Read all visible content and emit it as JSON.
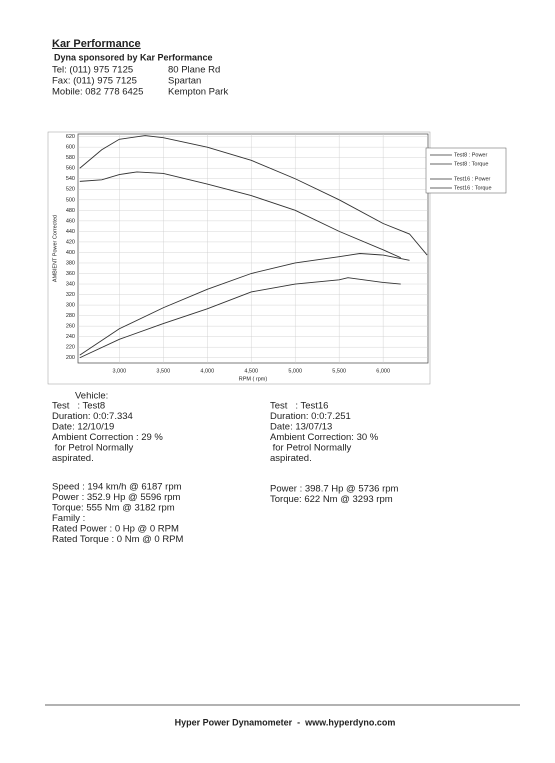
{
  "header": {
    "title": "Kar Performance",
    "subtitle": "Dyna sponsored by Kar Performance",
    "contact": [
      "Tel: (011) 975 7125",
      "Fax: (011) 975 7125",
      "Mobile: 082 778 6425"
    ],
    "address": [
      "80 Plane Rd",
      "Spartan",
      "Kempton Park"
    ]
  },
  "chart_data": {
    "type": "line",
    "xlabel": "RPM ( rpm)",
    "ylabel": "AMBIENT Power Corrected",
    "xlim": [
      2530,
      6510
    ],
    "ylim": [
      190,
      625
    ],
    "xticks": [
      {
        "value": 3000,
        "label": "3,000"
      },
      {
        "value": 3500,
        "label": "3,500"
      },
      {
        "value": 4000,
        "label": "4,000"
      },
      {
        "value": 4500,
        "label": "4,500"
      },
      {
        "value": 5000,
        "label": "5,000"
      },
      {
        "value": 5500,
        "label": "5,500"
      },
      {
        "value": 6000,
        "label": "6,000"
      }
    ],
    "yticks": [
      200,
      220,
      240,
      260,
      280,
      300,
      320,
      340,
      360,
      380,
      400,
      420,
      440,
      460,
      480,
      500,
      520,
      540,
      560,
      580,
      600,
      620
    ],
    "grid": true,
    "series": [
      {
        "name": "Test8 : Power",
        "color": "#333333",
        "x": [
          2550,
          3000,
          3500,
          4000,
          4500,
          5000,
          5500,
          5600,
          6000,
          6200
        ],
        "values": [
          200,
          235,
          265,
          293,
          325,
          340,
          348,
          352,
          343,
          340
        ]
      },
      {
        "name": "Test8 : Torque",
        "color": "#333333",
        "x": [
          2550,
          2800,
          3000,
          3200,
          3500,
          4000,
          4500,
          5000,
          5500,
          6000,
          6200
        ],
        "values": [
          535,
          538,
          548,
          553,
          550,
          530,
          508,
          480,
          440,
          405,
          390
        ]
      },
      {
        "name": "Test16 : Power",
        "color": "#333333",
        "x": [
          2550,
          3000,
          3500,
          4000,
          4500,
          5000,
          5500,
          5736,
          6000,
          6300
        ],
        "values": [
          205,
          255,
          295,
          330,
          360,
          380,
          392,
          398,
          395,
          385
        ]
      },
      {
        "name": "Test16 : Torque",
        "color": "#333333",
        "x": [
          2550,
          2800,
          3000,
          3293,
          3500,
          4000,
          4500,
          5000,
          5500,
          6000,
          6300,
          6500
        ],
        "values": [
          560,
          595,
          615,
          622,
          618,
          600,
          575,
          540,
          500,
          455,
          435,
          395
        ]
      }
    ]
  },
  "left": {
    "vehicle": "Vehicle:",
    "lines": [
      "Test   : Test8",
      "Duration: 0:0:7.334",
      "Date: 12/10/19",
      "Ambient Correction : 29 %",
      " for Petrol Normally",
      "aspirated."
    ],
    "results": [
      "Speed : 194 km/h @ 6187 rpm",
      "Power : 352.9 Hp @ 5596 rpm",
      "Torque: 555 Nm @ 3182 rpm",
      "Family :",
      "Rated Power : 0 Hp @ 0 RPM",
      "Rated Torque : 0 Nm @ 0 RPM"
    ]
  },
  "right": {
    "lines": [
      "Test   : Test16",
      "Duration: 0:0:7.251",
      "Date: 13/07/13",
      "Ambient Correction: 30 %",
      " for Petrol Normally",
      "aspirated."
    ],
    "results": [
      "Power : 398.7 Hp @ 5736 rpm",
      "Torque: 622 Nm @ 3293 rpm"
    ]
  },
  "footer": "Hyper Power Dynamometer  -  www.hyperdyno.com"
}
